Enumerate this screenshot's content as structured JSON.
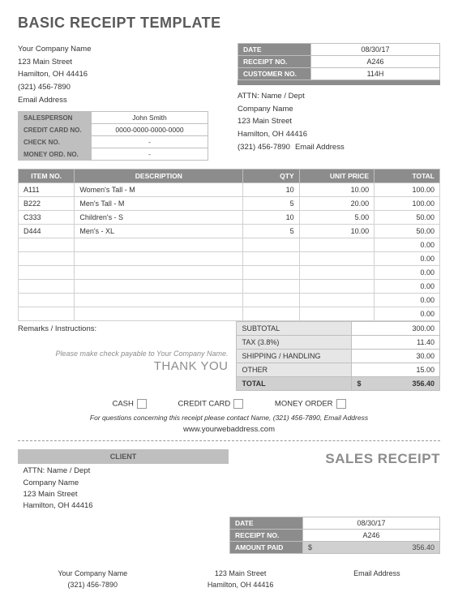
{
  "title": "BASIC RECEIPT TEMPLATE",
  "company": {
    "name": "Your Company Name",
    "street": "123 Main Street",
    "city": "Hamilton, OH  44416",
    "phone": "(321) 456-7890",
    "email": "Email Address"
  },
  "meta": {
    "date_label": "DATE",
    "date": "08/30/17",
    "receipt_label": "RECEIPT NO.",
    "receipt": "A246",
    "customer_label": "CUSTOMER NO.",
    "customer": "114H"
  },
  "sales": {
    "salesperson_label": "SALESPERSON",
    "salesperson": "John Smith",
    "cc_label": "CREDIT CARD NO.",
    "cc": "0000-0000-0000-0000",
    "check_label": "CHECK NO.",
    "check": "-",
    "mo_label": "MONEY ORD. NO.",
    "mo": "-"
  },
  "attn": {
    "name": "ATTN: Name / Dept",
    "company": "Company Name",
    "street": "123 Main Street",
    "city": "Hamilton, OH  44416",
    "phone": "(321) 456-7890",
    "email": "Email Address"
  },
  "items_header": {
    "item": "ITEM NO.",
    "desc": "DESCRIPTION",
    "qty": "QTY",
    "price": "UNIT PRICE",
    "total": "TOTAL"
  },
  "items": [
    {
      "no": "A111",
      "desc": "Women's Tall - M",
      "qty": "10",
      "price": "10.00",
      "total": "100.00"
    },
    {
      "no": "B222",
      "desc": "Men's Tall - M",
      "qty": "5",
      "price": "20.00",
      "total": "100.00"
    },
    {
      "no": "C333",
      "desc": "Children's - S",
      "qty": "10",
      "price": "5.00",
      "total": "50.00"
    },
    {
      "no": "D444",
      "desc": "Men's - XL",
      "qty": "5",
      "price": "10.00",
      "total": "50.00"
    },
    {
      "no": "",
      "desc": "",
      "qty": "",
      "price": "",
      "total": "0.00"
    },
    {
      "no": "",
      "desc": "",
      "qty": "",
      "price": "",
      "total": "0.00"
    },
    {
      "no": "",
      "desc": "",
      "qty": "",
      "price": "",
      "total": "0.00"
    },
    {
      "no": "",
      "desc": "",
      "qty": "",
      "price": "",
      "total": "0.00"
    },
    {
      "no": "",
      "desc": "",
      "qty": "",
      "price": "",
      "total": "0.00"
    },
    {
      "no": "",
      "desc": "",
      "qty": "",
      "price": "",
      "total": "0.00"
    }
  ],
  "remarks_label": "Remarks / Instructions:",
  "payable": "Please make check payable to Your Company Name.",
  "thankyou": "THANK YOU",
  "totals": {
    "subtotal_label": "SUBTOTAL",
    "subtotal": "300.00",
    "tax_label": "TAX (3.8%)",
    "tax": "11.40",
    "ship_label": "SHIPPING / HANDLING",
    "ship": "30.00",
    "other_label": "OTHER",
    "other": "15.00",
    "total_label": "TOTAL",
    "total": "356.40",
    "currency": "$"
  },
  "payopts": {
    "cash": "CASH",
    "cc": "CREDIT CARD",
    "mo": "MONEY ORDER"
  },
  "questions": "For questions concerning this receipt please contact Name, (321) 456-7890, Email Address",
  "website": "www.yourwebaddress.com",
  "slip": {
    "client_header": "CLIENT",
    "title": "SALES RECEIPT",
    "attn": "ATTN: Name / Dept",
    "company": "Company Name",
    "street": "123 Main Street",
    "city": "Hamilton, OH  44416",
    "date_label": "DATE",
    "date": "08/30/17",
    "receipt_label": "RECEIPT NO.",
    "receipt": "A246",
    "amount_label": "AMOUNT PAID",
    "currency": "$",
    "amount": "356.40"
  },
  "footer": {
    "c1a": "Your Company Name",
    "c1b": "(321) 456-7890",
    "c2a": "123 Main Street",
    "c2b": "Hamilton, OH 44416",
    "c3a": "Email Address"
  }
}
